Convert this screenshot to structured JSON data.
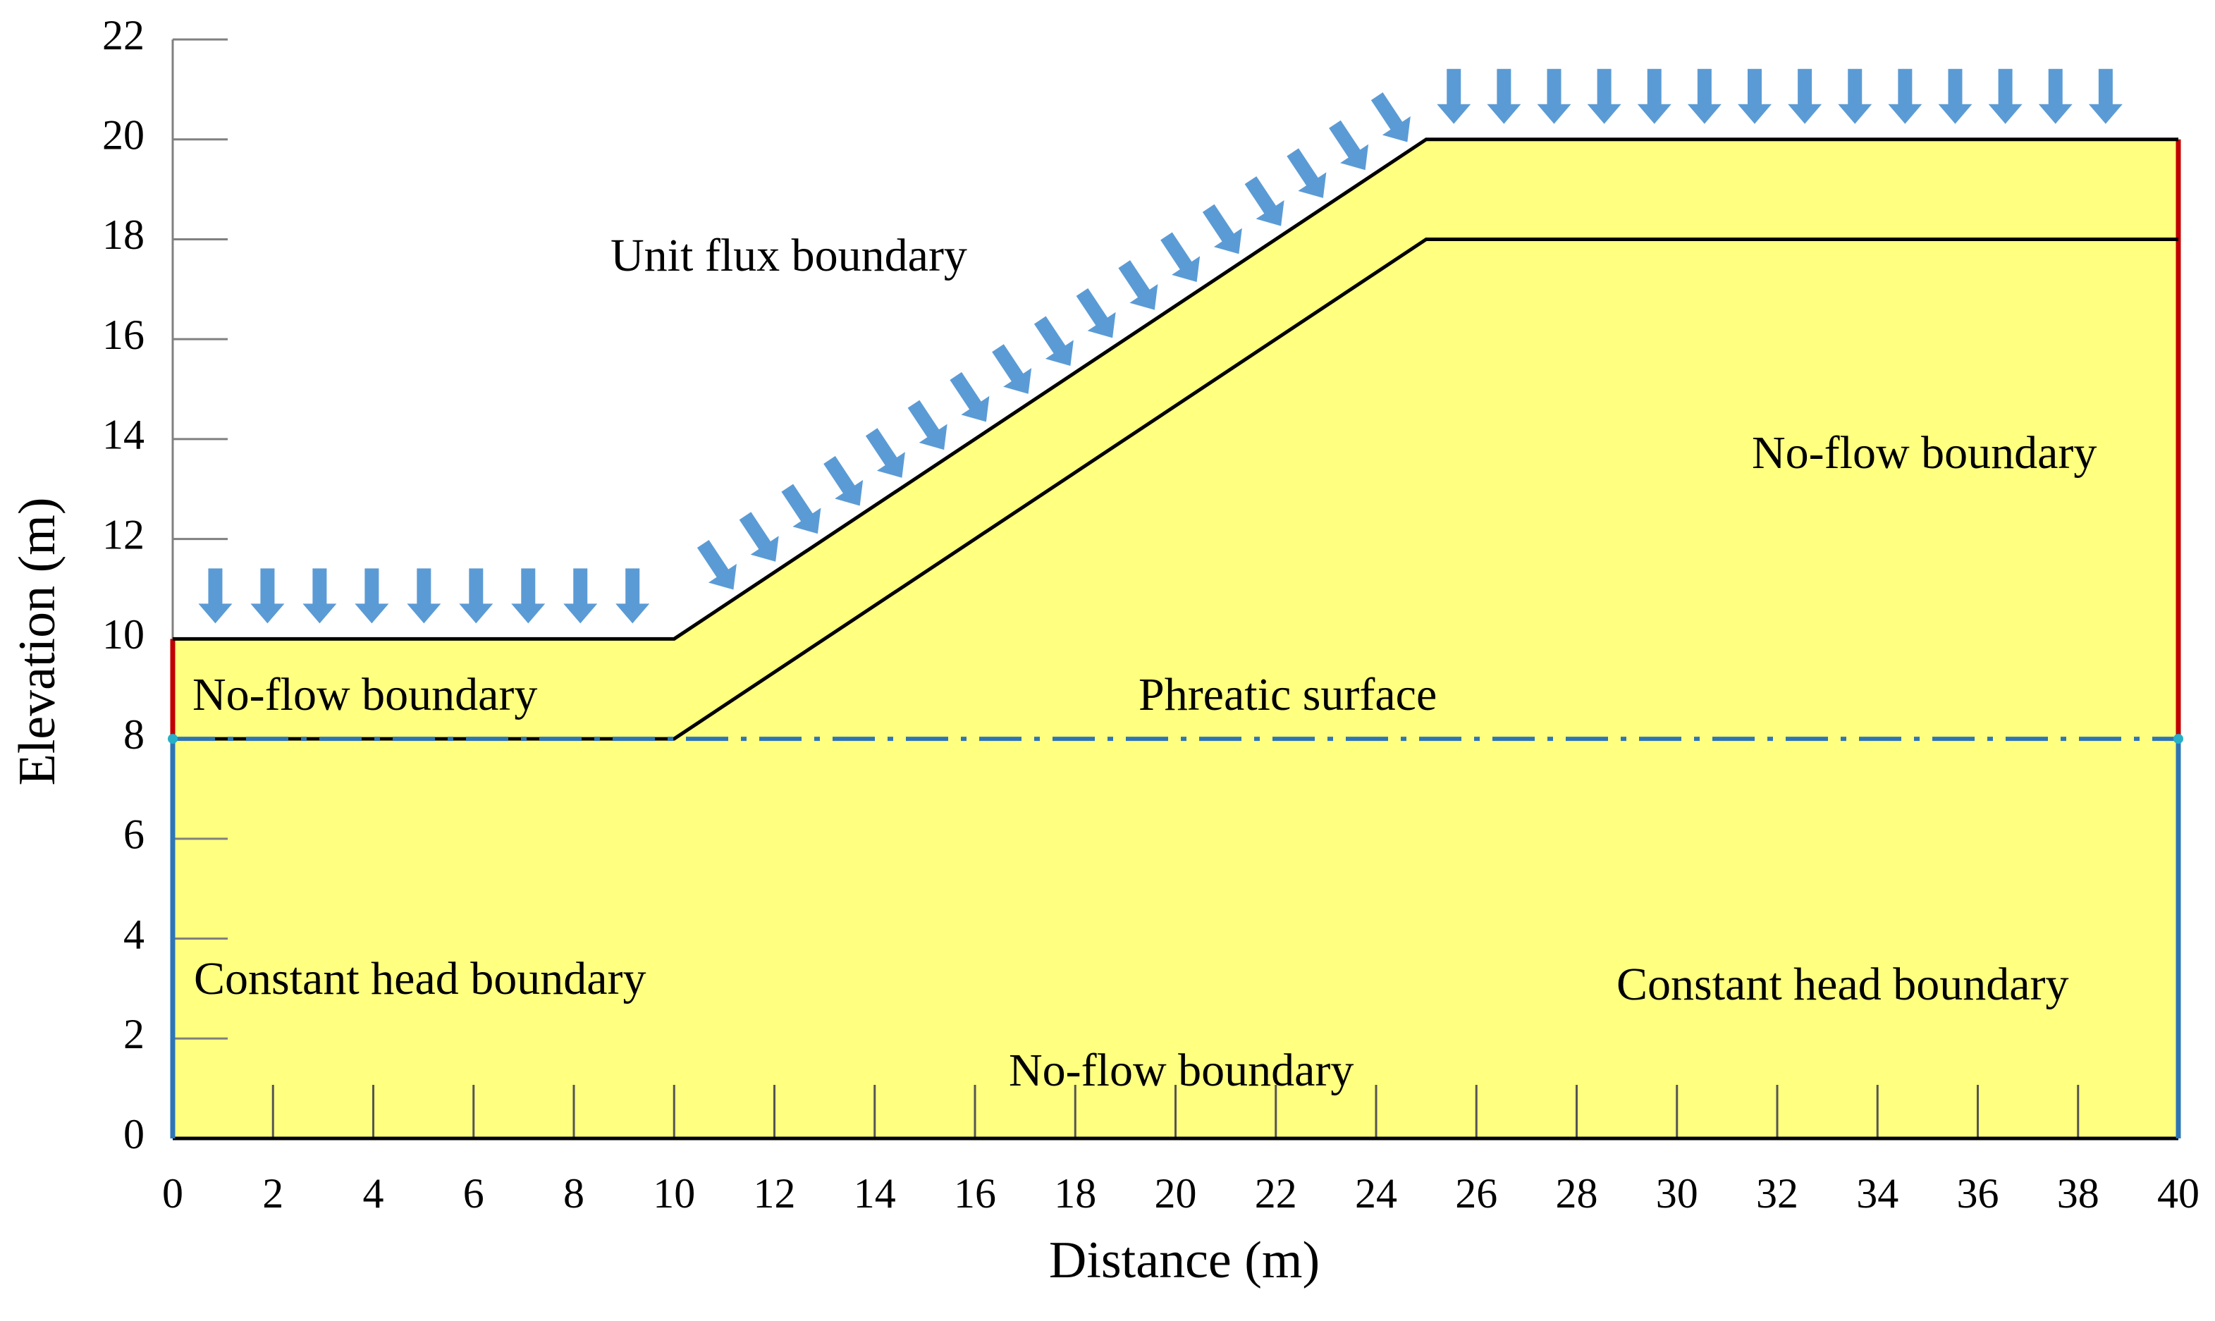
{
  "chart_data": {
    "type": "line",
    "xlabel": "Distance (m)",
    "ylabel": "Elevation (m)",
    "xlim": [
      0,
      40
    ],
    "ylim": [
      0,
      22
    ],
    "xticks": [
      0,
      2,
      4,
      6,
      8,
      10,
      12,
      14,
      16,
      18,
      20,
      22,
      24,
      26,
      28,
      30,
      32,
      34,
      36,
      38,
      40
    ],
    "yticks": [
      0,
      2,
      4,
      6,
      8,
      10,
      12,
      14,
      16,
      18,
      20,
      22
    ],
    "fill": "#ffff80",
    "series": [
      {
        "color": "#000000",
        "linestyle": "solid",
        "x": [
          0,
          10,
          25,
          40
        ],
        "values": [
          10,
          10,
          20,
          20
        ]
      },
      {
        "color": "#000000",
        "linestyle": "solid",
        "x": [
          0,
          10,
          25,
          40
        ],
        "values": [
          8,
          8,
          18,
          18
        ]
      },
      {
        "color": "#2e75b6",
        "linestyle": "dashdot",
        "x": [
          0,
          40
        ],
        "values": [
          8,
          8
        ]
      }
    ],
    "annotations": [
      "Unit flux boundary",
      "No-flow boundary",
      "Phreatic surface",
      "No-flow boundary",
      "Constant head boundary",
      "Constant head boundary",
      "No-flow boundary"
    ]
  }
}
